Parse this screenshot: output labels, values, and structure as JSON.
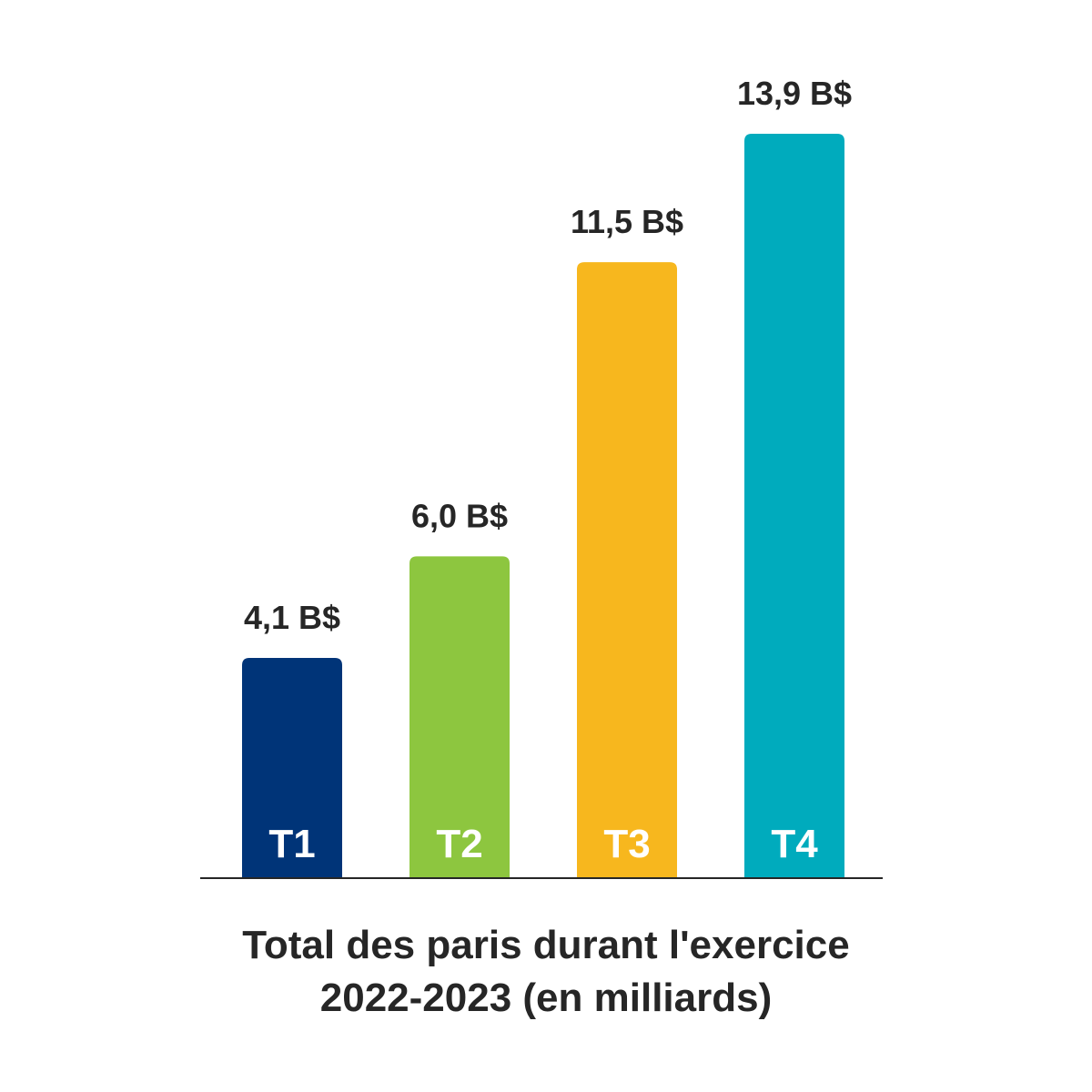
{
  "chart_data": {
    "type": "bar",
    "categories": [
      "T1",
      "T2",
      "T3",
      "T4"
    ],
    "values": [
      4.1,
      6.0,
      11.5,
      13.9
    ],
    "value_labels": [
      "4,1 B$",
      "6,0 B$",
      "11,5 B$",
      "13,9 B$"
    ],
    "colors": [
      "#003478",
      "#8dc63f",
      "#f7b71e",
      "#00abbd"
    ],
    "title_lines": [
      "Total des paris durant l'exercice",
      "2022-2023 (en milliards)"
    ],
    "xlabel": "",
    "ylabel": "",
    "ylim": [
      0,
      13.9
    ],
    "grid": false,
    "legend": "none"
  }
}
